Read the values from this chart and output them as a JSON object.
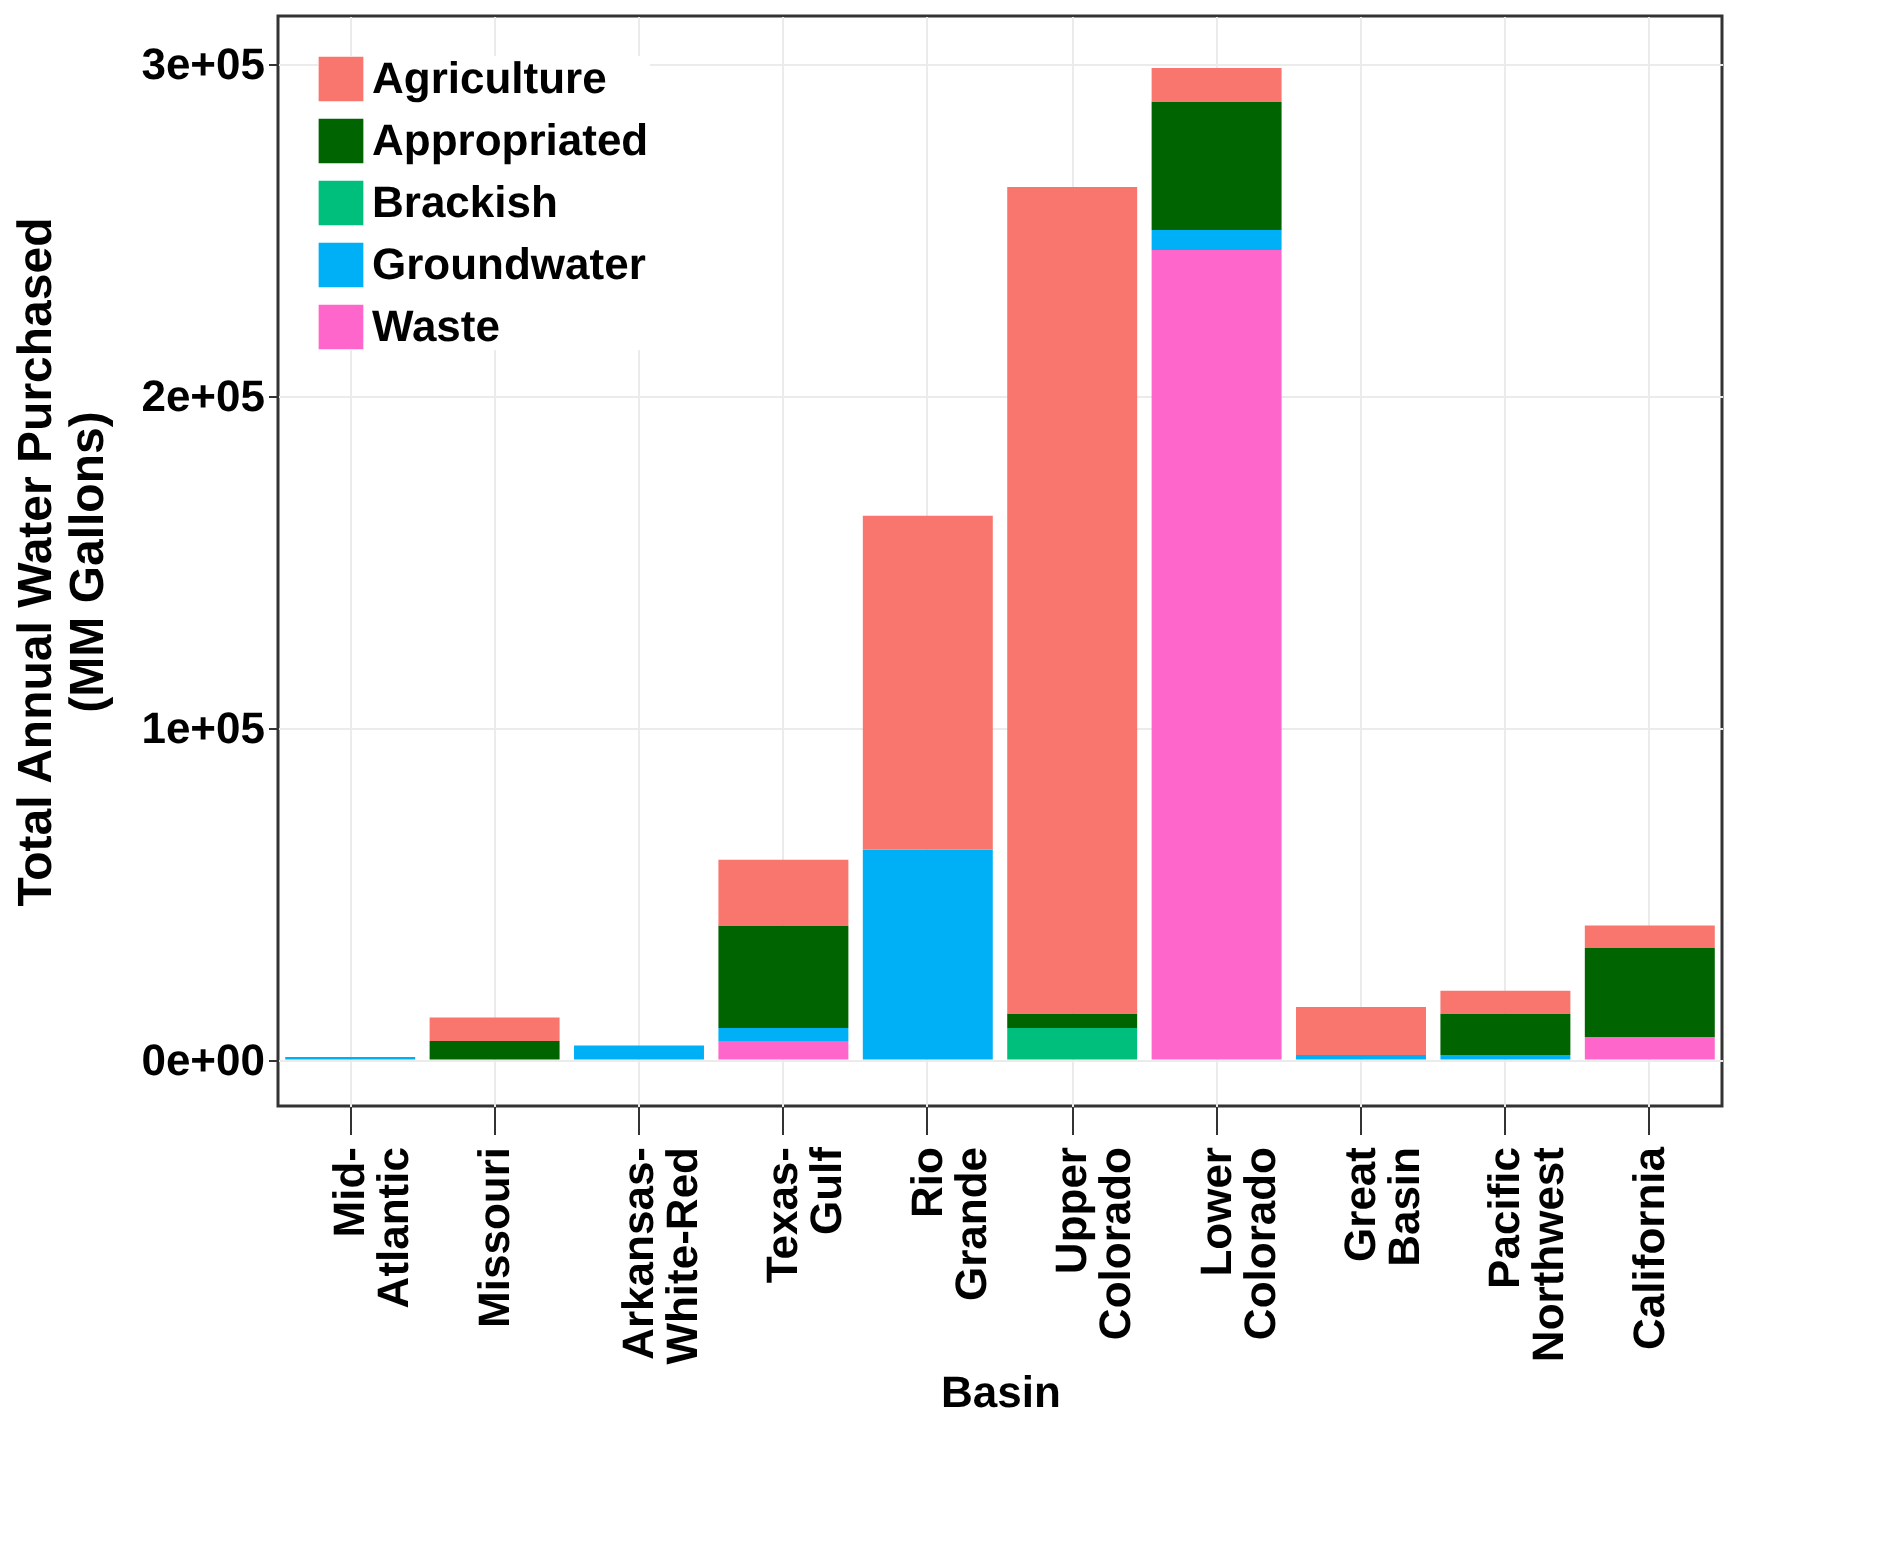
{
  "chart_data": {
    "type": "bar",
    "stacked": true,
    "xlabel": "Basin",
    "ylabel": "Total Annual Water Purchased\n(MM Gallons)",
    "categories": [
      "Mid-\nAtlantic",
      "Missouri",
      "Arkansas-\nWhite-Red",
      "Texas-\nGulf",
      "Rio\nGrande",
      "Upper\nColorado",
      "Lower\nColorado",
      "Great\nBasin",
      "Pacific\nNorthwest",
      "California"
    ],
    "series": [
      {
        "name": "Waste",
        "color": "#ff66cc",
        "values": [
          null,
          null,
          null,
          5600,
          null,
          null,
          244000,
          null,
          null,
          6800
        ]
      },
      {
        "name": "Groundwater",
        "color": "#00b0f6",
        "values": [
          800,
          null,
          4200,
          3900,
          63300,
          null,
          6000,
          1400,
          1400,
          null
        ]
      },
      {
        "name": "Brackish",
        "color": "#00bf7d",
        "values": [
          null,
          null,
          null,
          null,
          null,
          9500,
          null,
          null,
          null,
          null
        ]
      },
      {
        "name": "Appropriated",
        "color": "#006400",
        "values": [
          null,
          5600,
          null,
          30900,
          null,
          4400,
          38600,
          null,
          12500,
          26800
        ]
      },
      {
        "name": "Agriculture",
        "color": "#f8766d",
        "values": [
          null,
          7100,
          null,
          19800,
          100600,
          249100,
          10200,
          14400,
          6800,
          6800
        ]
      }
    ],
    "ylim": [
      -14000,
      314500
    ],
    "yticks": [
      {
        "value": 0,
        "label": "0e+00"
      },
      {
        "value": 100000,
        "label": "1e+05"
      },
      {
        "value": 200000,
        "label": "2e+05"
      },
      {
        "value": 300000,
        "label": "3e+05"
      }
    ],
    "grid": true,
    "legend": "top left"
  }
}
